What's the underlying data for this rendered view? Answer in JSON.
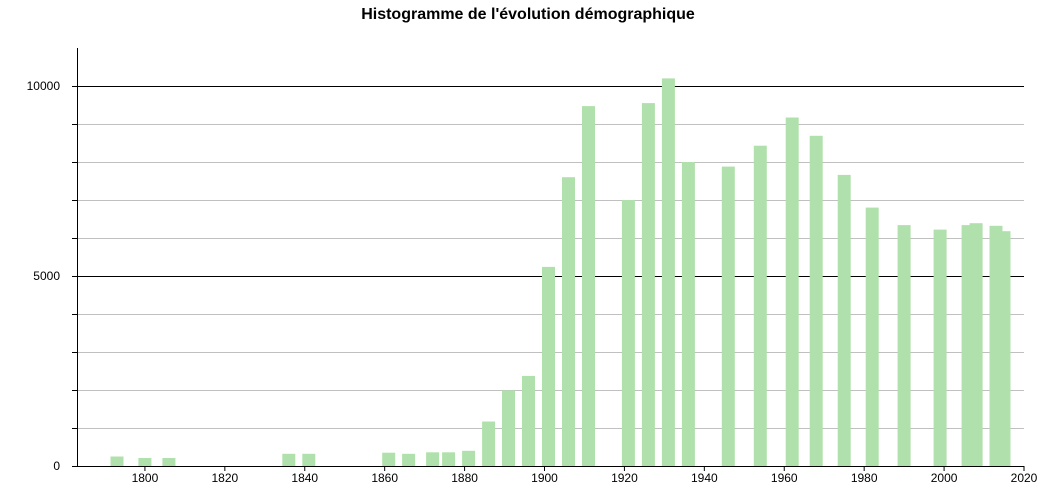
{
  "chart_data": {
    "type": "bar",
    "title": "Histogramme de l'évolution démographique",
    "xlabel": "",
    "ylabel": "",
    "xlim": [
      1783,
      2020
    ],
    "ylim": [
      0,
      11000
    ],
    "x_ticks": [
      1800,
      1820,
      1840,
      1860,
      1880,
      1900,
      1920,
      1940,
      1960,
      1980,
      2000,
      2020
    ],
    "y_ticks": [
      0,
      5000,
      10000
    ],
    "y_minor_ticks": [
      1000,
      2000,
      3000,
      4000,
      6000,
      7000,
      8000,
      9000
    ],
    "grid": true,
    "bar_color": "#b0e0ab",
    "series": [
      {
        "x": [
          1793,
          1800,
          1806,
          1836,
          1841,
          1861,
          1866,
          1872,
          1876,
          1881,
          1886,
          1891,
          1896,
          1901,
          1906,
          1911,
          1921,
          1926,
          1931,
          1936,
          1946,
          1954,
          1962,
          1968,
          1975,
          1982,
          1990,
          1999,
          2006,
          2008,
          2013,
          2015
        ],
        "values": [
          250,
          210,
          210,
          320,
          320,
          350,
          320,
          360,
          360,
          400,
          1170,
          1990,
          2370,
          5240,
          7600,
          9470,
          7000,
          9550,
          10200,
          8000,
          7880,
          8430,
          9170,
          8690,
          7660,
          6800,
          6340,
          6220,
          6340,
          6390,
          6320,
          6180
        ]
      }
    ]
  }
}
